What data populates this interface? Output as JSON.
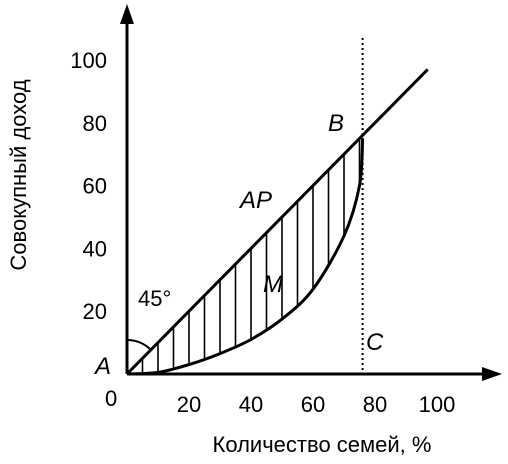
{
  "chart_data": {
    "type": "line",
    "xlabel": "Количество семей, %",
    "ylabel": "Совокупный доход",
    "xlim": [
      0,
      110
    ],
    "ylim": [
      0,
      110
    ],
    "x_ticks": [
      {
        "value": 20,
        "label": "20"
      },
      {
        "value": 40,
        "label": "40"
      },
      {
        "value": 60,
        "label": "60"
      },
      {
        "value": 80,
        "label": "80"
      },
      {
        "value": 100,
        "label": "100"
      }
    ],
    "y_ticks": [
      {
        "value": 20,
        "label": "20"
      },
      {
        "value": 40,
        "label": "40"
      },
      {
        "value": 60,
        "label": "60"
      },
      {
        "value": 80,
        "label": "80"
      },
      {
        "value": 100,
        "label": "100"
      }
    ],
    "origin_label": "0",
    "series": [
      {
        "name": "AP",
        "x": [
          0,
          97
        ],
        "y": [
          0,
          97
        ]
      },
      {
        "name": "M",
        "x": [
          0,
          10,
          20,
          30,
          40,
          50,
          60,
          70,
          75,
          76
        ],
        "y": [
          0,
          0.5,
          3,
          6.5,
          11,
          17.5,
          27,
          44,
          60,
          75
        ]
      }
    ],
    "vertical_line": {
      "x": 76
    },
    "hatch_x": [
      5,
      10,
      15,
      20,
      25,
      30,
      35,
      40,
      45,
      50,
      55,
      60,
      65,
      70,
      75
    ],
    "angle_mark": "45°",
    "points": [
      {
        "label": "A",
        "x": 0,
        "y": 0
      },
      {
        "label": "B",
        "x": 76,
        "y": 76
      },
      {
        "label": "C",
        "x": 76,
        "y": 0
      }
    ]
  }
}
